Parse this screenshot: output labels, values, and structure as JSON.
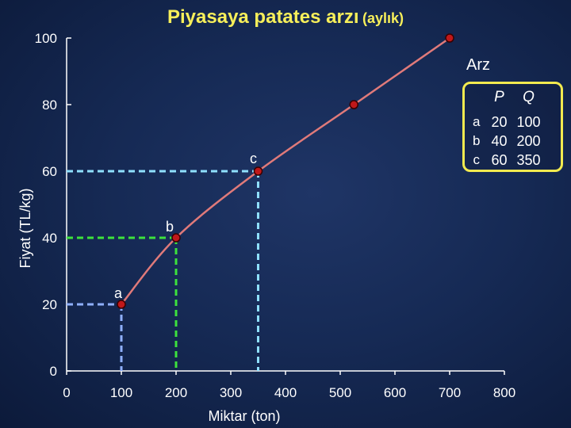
{
  "title": "Piyasaya patates arzı",
  "subtitle": "(aylık)",
  "chart_data": {
    "type": "line",
    "xlabel": "Miktar (ton)",
    "ylabel": "Fiyat (TL/kg)",
    "xlim": [
      0,
      800
    ],
    "ylim": [
      0,
      100
    ],
    "xticks": [
      "0",
      "100",
      "200",
      "300",
      "400",
      "500",
      "600",
      "700",
      "800"
    ],
    "yticks": [
      "0",
      "20",
      "40",
      "60",
      "80",
      "100"
    ],
    "grid": false,
    "series": [
      {
        "name": "Arz",
        "x": [
          100,
          200,
          350,
          525,
          700
        ],
        "y": [
          20,
          40,
          60,
          80,
          100
        ],
        "color": "#e07a7a"
      }
    ],
    "point_labels": [
      {
        "label": "a",
        "x": 100,
        "y": 20
      },
      {
        "label": "b",
        "x": 200,
        "y": 40
      },
      {
        "label": "c",
        "x": 350,
        "y": 60
      }
    ],
    "guide_colors": {
      "a": "#8fb0ff",
      "b": "#3de23d",
      "c": "#8fe0ff"
    },
    "marker_color": "#c0181a"
  },
  "table": {
    "headers": [
      "",
      "P",
      "Q"
    ],
    "rows": [
      [
        "a",
        "20",
        "100"
      ],
      [
        "b",
        "40",
        "200"
      ],
      [
        "c",
        "60",
        "350"
      ]
    ]
  }
}
